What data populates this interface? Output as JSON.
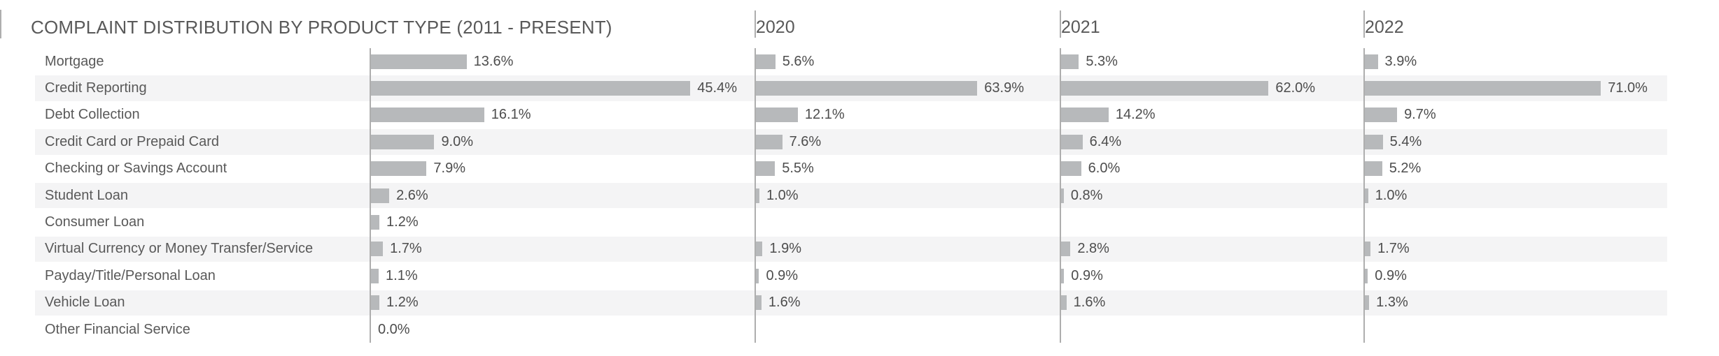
{
  "chart_data": {
    "type": "bar",
    "title": "COMPLAINT DISTRIBUTION BY PRODUCT TYPE (2011 - PRESENT)",
    "year_columns": [
      "2020",
      "2021",
      "2022"
    ],
    "categories": [
      "Mortgage",
      "Credit Reporting",
      "Debt Collection",
      "Credit Card or Prepaid Card",
      "Checking or Savings Account",
      "Student Loan",
      "Consumer Loan",
      "Virtual Currency or Money Transfer/Service",
      "Payday/Title/Personal Loan",
      "Vehicle Loan",
      "Other Financial Service"
    ],
    "series": [
      {
        "name": "2011 - Present",
        "values": [
          13.6,
          45.4,
          16.1,
          9.0,
          7.9,
          2.6,
          1.2,
          1.7,
          1.1,
          1.2,
          0.0
        ]
      },
      {
        "name": "2020",
        "values": [
          5.6,
          63.9,
          12.1,
          7.6,
          5.5,
          1.0,
          null,
          1.9,
          0.9,
          1.6,
          null
        ]
      },
      {
        "name": "2021",
        "values": [
          5.3,
          62.0,
          14.2,
          6.4,
          6.0,
          0.8,
          null,
          2.8,
          0.9,
          1.6,
          null
        ]
      },
      {
        "name": "2022",
        "values": [
          3.9,
          71.0,
          9.7,
          5.4,
          5.2,
          1.0,
          null,
          1.7,
          0.9,
          1.3,
          null
        ]
      }
    ],
    "value_suffix": "%",
    "value_decimals": 1,
    "xlim_per_column": [
      [
        0,
        52
      ],
      [
        0,
        86
      ],
      [
        0,
        89
      ],
      [
        0,
        90
      ]
    ],
    "legend_position": "none",
    "grid": false,
    "colors": {
      "bar": "#b7b9bb",
      "stripe": "#f4f4f5",
      "axis_line": "#aeaeae",
      "label_text": "#595959",
      "value_text": "#4d4d4d",
      "header_text": "#595959",
      "background": "#ffffff"
    }
  }
}
